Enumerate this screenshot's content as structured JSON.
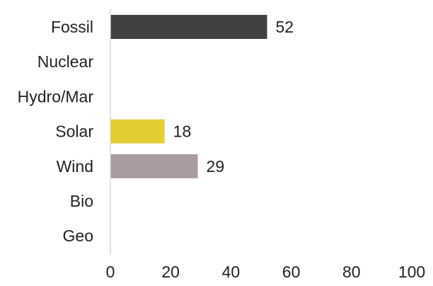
{
  "chart_data": {
    "type": "bar",
    "orientation": "horizontal",
    "categories": [
      "Fossil",
      "Nuclear",
      "Hydro/Mar",
      "Solar",
      "Wind",
      "Bio",
      "Geo"
    ],
    "values": [
      52,
      null,
      null,
      18,
      29,
      null,
      null
    ],
    "data_labels": [
      "52",
      "",
      "",
      "18",
      "29",
      "",
      ""
    ],
    "bar_colors": [
      "#404040",
      "#404040",
      "#404040",
      "#e3cd33",
      "#aa9c9e",
      "#404040",
      "#404040"
    ],
    "title": "",
    "xlabel": "",
    "ylabel": "",
    "xlim": [
      0,
      100
    ],
    "xticks": [
      "0",
      "20",
      "40",
      "60",
      "80",
      "100"
    ],
    "grid": false,
    "legend": "none"
  }
}
